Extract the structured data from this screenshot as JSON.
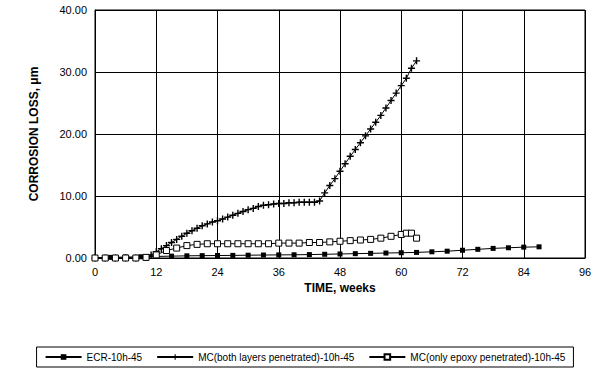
{
  "chart_data": {
    "type": "line",
    "x_label": "TIME, weeks",
    "y_label": "CORROSION LOSS, μm",
    "xlim": [
      0,
      96
    ],
    "xticks": [
      0,
      12,
      24,
      36,
      48,
      60,
      72,
      84,
      96
    ],
    "ylim": [
      0,
      40
    ],
    "yticks": [
      {
        "value": 0,
        "label": "0.00"
      },
      {
        "value": 10,
        "label": "10.00"
      },
      {
        "value": 20,
        "label": "20.00"
      },
      {
        "value": 30,
        "label": "30.00"
      },
      {
        "value": 40,
        "label": "40.00"
      }
    ],
    "grid": true,
    "legend": "bottom",
    "series": [
      {
        "name": "ECR-10h-45",
        "color": "#000000",
        "marker": "filled_square",
        "x": [
          0,
          3,
          6,
          9,
          12,
          15,
          18,
          21,
          24,
          27,
          30,
          33,
          36,
          39,
          42,
          45,
          48,
          51,
          54,
          57,
          60,
          63,
          66,
          69,
          72,
          75,
          78,
          81,
          84,
          87
        ],
        "values": [
          0.05,
          0.1,
          0.15,
          0.2,
          0.25,
          0.3,
          0.35,
          0.38,
          0.4,
          0.42,
          0.45,
          0.48,
          0.5,
          0.52,
          0.55,
          0.6,
          0.65,
          0.7,
          0.75,
          0.8,
          0.85,
          0.9,
          1.0,
          1.1,
          1.25,
          1.4,
          1.55,
          1.65,
          1.75,
          1.8
        ]
      },
      {
        "name": "MC(both layers penetrated)-10h-45",
        "color": "#000000",
        "marker": "plus",
        "x": [
          0,
          2,
          4,
          6,
          8,
          10,
          11,
          12,
          13,
          14,
          15,
          16,
          17,
          18,
          19,
          20,
          21,
          22,
          23,
          24,
          25,
          26,
          27,
          28,
          29,
          30,
          31,
          32,
          33,
          34,
          35,
          36,
          37,
          38,
          39,
          40,
          41,
          42,
          43,
          44,
          45,
          46,
          47,
          48,
          49,
          50,
          51,
          52,
          53,
          54,
          55,
          56,
          57,
          58,
          59,
          60,
          61,
          62,
          63
        ],
        "values": [
          0,
          0,
          0,
          0,
          0,
          0.1,
          0.5,
          1.0,
          1.5,
          2.0,
          2.5,
          3.0,
          3.5,
          4.0,
          4.4,
          4.8,
          5.2,
          5.5,
          5.8,
          6.0,
          6.3,
          6.6,
          6.9,
          7.2,
          7.5,
          7.8,
          8.0,
          8.3,
          8.5,
          8.6,
          8.7,
          8.8,
          8.8,
          8.9,
          8.9,
          9.0,
          9.0,
          9.0,
          9.0,
          9.2,
          10.5,
          11.7,
          12.8,
          14.0,
          15.2,
          16.4,
          17.5,
          18.6,
          19.7,
          20.8,
          21.9,
          23.0,
          24.2,
          25.4,
          26.6,
          27.8,
          29.0,
          30.6,
          31.8
        ]
      },
      {
        "name": "MC(only epoxy penetrated)-10h-45",
        "color": "#000000",
        "marker": "open_square",
        "x": [
          0,
          2,
          4,
          6,
          8,
          10,
          12,
          14,
          16,
          18,
          20,
          22,
          24,
          26,
          28,
          30,
          32,
          34,
          36,
          38,
          40,
          42,
          44,
          46,
          48,
          50,
          52,
          54,
          56,
          58,
          60,
          61,
          62,
          63
        ],
        "values": [
          0,
          0,
          0,
          0,
          0,
          0.1,
          0.5,
          1.2,
          1.6,
          2.0,
          2.2,
          2.3,
          2.3,
          2.3,
          2.3,
          2.3,
          2.3,
          2.3,
          2.4,
          2.4,
          2.4,
          2.5,
          2.5,
          2.6,
          2.7,
          2.8,
          2.9,
          3.0,
          3.2,
          3.5,
          3.8,
          4.0,
          4.0,
          3.2
        ]
      }
    ]
  }
}
